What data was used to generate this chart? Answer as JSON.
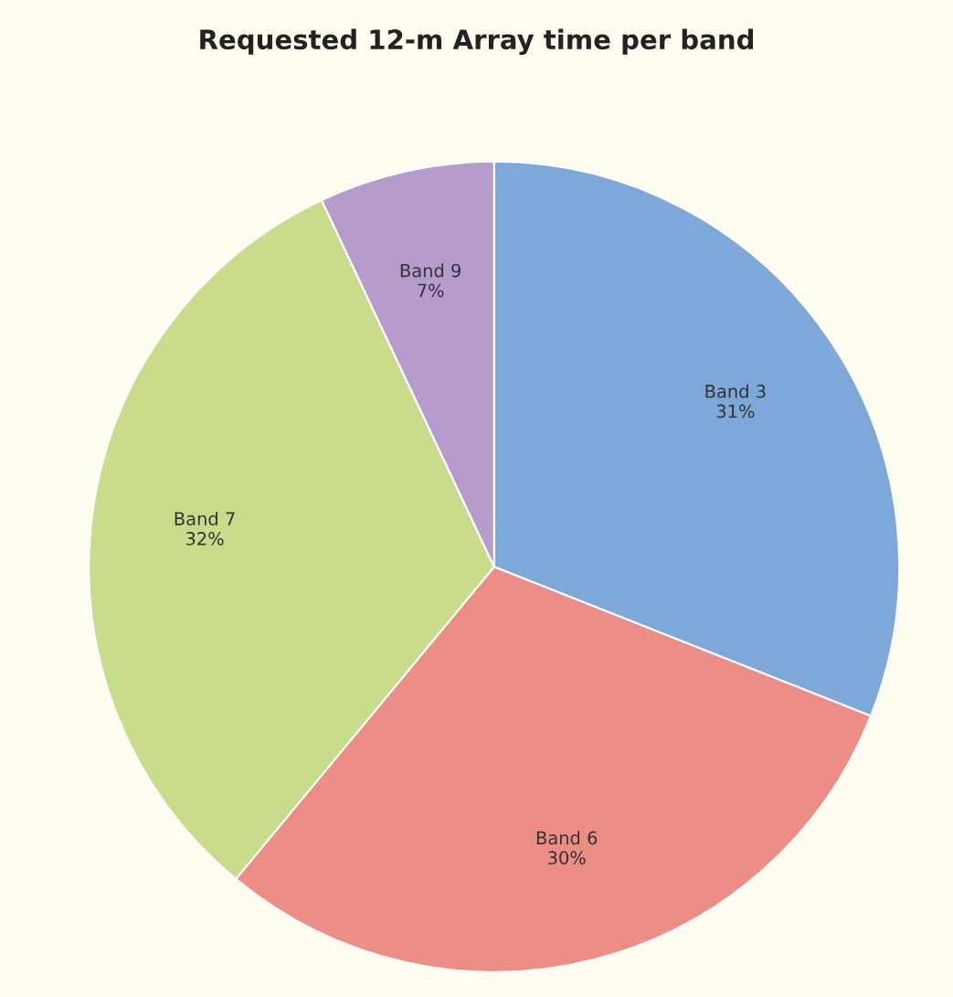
{
  "chart_data": {
    "type": "pie",
    "title": "Requested 12-m Array time per band",
    "categories": [
      "Band 3",
      "Band 6",
      "Band 7",
      "Band 9"
    ],
    "values": [
      31,
      30,
      32,
      7
    ],
    "value_labels": [
      "31%",
      "30%",
      "32%",
      "7%"
    ],
    "colors": [
      "#7fa8da",
      "#ec8d86",
      "#c8dc8c",
      "#b59ccd"
    ],
    "legend": false
  }
}
